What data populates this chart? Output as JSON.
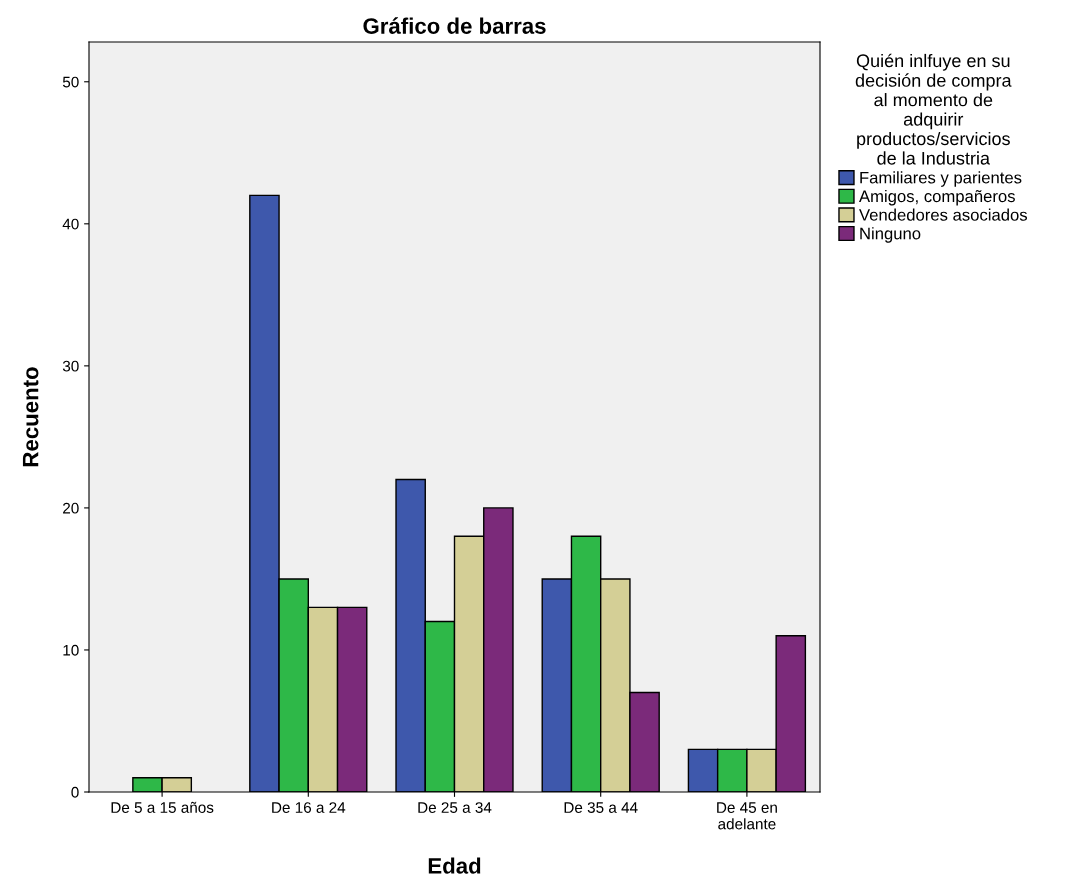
{
  "chart_data": {
    "type": "bar",
    "title": "Gráfico de barras",
    "xlabel": "Edad",
    "ylabel": "Recuento",
    "legend_title": "Quién inlfuye en su\ndecisión de compra\nal momento de\nadquirir\nproductos/servicios\nde la Industria",
    "categories": [
      "De 5 a 15 años",
      "De 16 a 24",
      "De 25 a 34",
      "De 35 a 44",
      "De 45 en\nadelante"
    ],
    "series": [
      {
        "name": "Familiares y parientes",
        "color": "#3e58ac",
        "values": [
          null,
          42,
          22,
          15,
          3
        ]
      },
      {
        "name": "Amigos, compañeros",
        "color": "#2eb848",
        "values": [
          1,
          15,
          12,
          18,
          3
        ]
      },
      {
        "name": "Vendedores asociados",
        "color": "#d4cf96",
        "values": [
          1,
          13,
          18,
          15,
          3
        ]
      },
      {
        "name": "Ninguno",
        "color": "#7b2a7a",
        "values": [
          null,
          13,
          20,
          7,
          11
        ]
      }
    ],
    "ylim": [
      0,
      52.8
    ],
    "yticks": [
      0,
      10,
      20,
      30,
      40,
      50
    ],
    "grid": false,
    "legend": "right"
  }
}
